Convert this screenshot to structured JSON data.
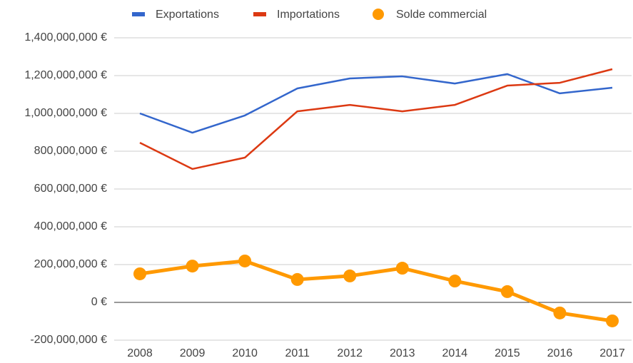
{
  "chart_data": {
    "type": "line",
    "categories": [
      "2008",
      "2009",
      "2010",
      "2011",
      "2012",
      "2013",
      "2014",
      "2015",
      "2016",
      "2017"
    ],
    "series": [
      {
        "name": "Exportations",
        "color": "#3366cc",
        "values": [
          1000000000,
          898000000,
          989000000,
          1132000000,
          1185000000,
          1196000000,
          1158000000,
          1208000000,
          1106000000,
          1136000000
        ]
      },
      {
        "name": "Importations",
        "color": "#dc3912",
        "values": [
          845000000,
          706000000,
          766000000,
          1011000000,
          1045000000,
          1011000000,
          1045000000,
          1147000000,
          1162000000,
          1234000000
        ]
      },
      {
        "name": "Solde commercial",
        "color": "#ff9900",
        "markers": true,
        "values": [
          151000000,
          192000000,
          219000000,
          121000000,
          140000000,
          181000000,
          113000000,
          57000000,
          -56000000,
          -98000000
        ]
      }
    ],
    "ylim": [
      -200000000,
      1400000000
    ],
    "yticks": [
      {
        "value": -200000000,
        "label": "-200,000,000 €"
      },
      {
        "value": 0,
        "label": "0 €"
      },
      {
        "value": 200000000,
        "label": "200,000,000 €"
      },
      {
        "value": 400000000,
        "label": "400,000,000 €"
      },
      {
        "value": 600000000,
        "label": "600,000,000 €"
      },
      {
        "value": 800000000,
        "label": "800,000,000 €"
      },
      {
        "value": 1000000000,
        "label": "1,000,000,000 €"
      },
      {
        "value": 1200000000,
        "label": "1,200,000,000 €"
      },
      {
        "value": 1400000000,
        "label": "1,400,000,000 €"
      }
    ],
    "grid": true,
    "legend": "top"
  }
}
